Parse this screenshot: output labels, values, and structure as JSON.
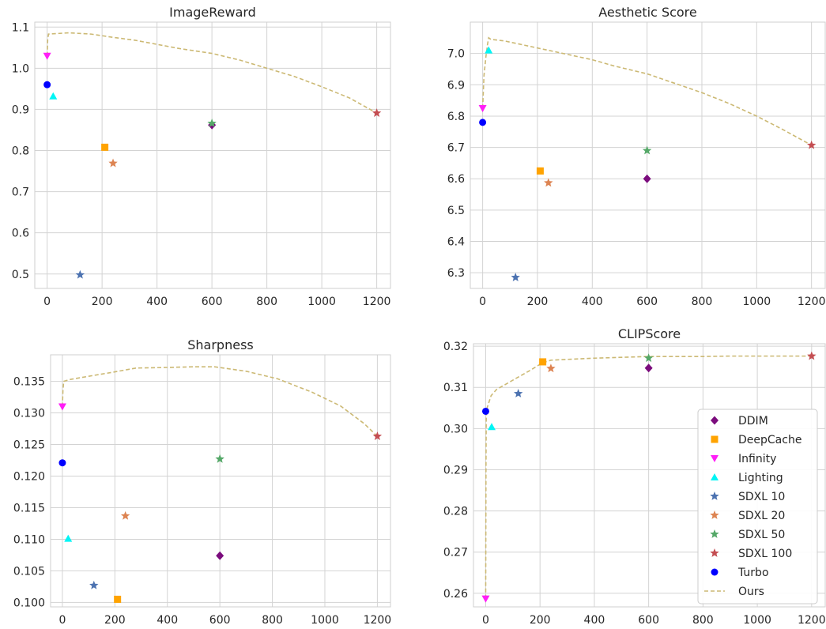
{
  "chart_data": [
    {
      "type": "scatter",
      "title": "ImageReward",
      "xlabel": "",
      "ylabel": "",
      "xlim": [
        -45,
        1250
      ],
      "ylim": [
        0.465,
        1.112
      ],
      "xticks": [
        0,
        200,
        400,
        600,
        800,
        1000,
        1200
      ],
      "yticks": [
        0.5,
        0.6,
        0.7,
        0.8,
        0.9,
        1.0,
        1.1
      ],
      "ytick_labels": [
        "0.5",
        "0.6",
        "0.7",
        "0.8",
        "0.9",
        "1.0",
        "1.1"
      ],
      "grid": true,
      "points": [
        {
          "series": "DDIM",
          "x": 600,
          "y": 0.862
        },
        {
          "series": "DeepCache",
          "x": 210,
          "y": 0.808
        },
        {
          "series": "Infinity",
          "x": 0,
          "y": 1.03
        },
        {
          "series": "Lighting",
          "x": 22,
          "y": 0.932
        },
        {
          "series": "SDXL 10",
          "x": 120,
          "y": 0.498
        },
        {
          "series": "SDXL 20",
          "x": 240,
          "y": 0.769
        },
        {
          "series": "SDXL 50",
          "x": 600,
          "y": 0.866
        },
        {
          "series": "SDXL 100",
          "x": 1200,
          "y": 0.891
        },
        {
          "series": "Turbo",
          "x": 0,
          "y": 0.96
        }
      ],
      "line": {
        "series": "Ours",
        "x": [
          0,
          2,
          5,
          30,
          80,
          160,
          240,
          320,
          400,
          480,
          600,
          700,
          800,
          900,
          1000,
          1100,
          1200
        ],
        "y": [
          1.03,
          1.07,
          1.083,
          1.084,
          1.086,
          1.083,
          1.075,
          1.068,
          1.058,
          1.048,
          1.036,
          1.02,
          1.0,
          0.98,
          0.955,
          0.928,
          0.891
        ]
      }
    },
    {
      "type": "scatter",
      "title": "Aesthetic Score",
      "xlabel": "",
      "ylabel": "",
      "xlim": [
        -45,
        1250
      ],
      "ylim": [
        6.25,
        7.1
      ],
      "xticks": [
        0,
        200,
        400,
        600,
        800,
        1000,
        1200
      ],
      "yticks": [
        6.3,
        6.4,
        6.5,
        6.6,
        6.7,
        6.8,
        6.9,
        7.0
      ],
      "ytick_labels": [
        "6.3",
        "6.4",
        "6.5",
        "6.6",
        "6.7",
        "6.8",
        "6.9",
        "7.0"
      ],
      "grid": true,
      "points": [
        {
          "series": "DDIM",
          "x": 600,
          "y": 6.6
        },
        {
          "series": "DeepCache",
          "x": 210,
          "y": 6.625
        },
        {
          "series": "Infinity",
          "x": 0,
          "y": 6.825
        },
        {
          "series": "Lighting",
          "x": 22,
          "y": 7.01
        },
        {
          "series": "SDXL 10",
          "x": 120,
          "y": 6.285
        },
        {
          "series": "SDXL 20",
          "x": 240,
          "y": 6.587
        },
        {
          "series": "SDXL 50",
          "x": 600,
          "y": 6.69
        },
        {
          "series": "SDXL 100",
          "x": 1200,
          "y": 6.707
        },
        {
          "series": "Turbo",
          "x": 0,
          "y": 6.78
        }
      ],
      "line": {
        "series": "Ours",
        "x": [
          0,
          5,
          12,
          18,
          22,
          30,
          80,
          160,
          240,
          320,
          400,
          480,
          600,
          700,
          800,
          900,
          1000,
          1100,
          1200
        ],
        "y": [
          6.825,
          6.93,
          6.99,
          7.03,
          7.05,
          7.045,
          7.04,
          7.025,
          7.01,
          6.995,
          6.98,
          6.96,
          6.935,
          6.905,
          6.875,
          6.84,
          6.8,
          6.755,
          6.707
        ]
      }
    },
    {
      "type": "scatter",
      "title": "Sharpness",
      "xlabel": "",
      "ylabel": "",
      "xlim": [
        -45,
        1250
      ],
      "ylim": [
        0.0993,
        0.1392
      ],
      "xticks": [
        0,
        200,
        400,
        600,
        800,
        1000,
        1200
      ],
      "yticks": [
        0.1,
        0.105,
        0.11,
        0.115,
        0.12,
        0.125,
        0.13,
        0.135
      ],
      "ytick_labels": [
        "0.100",
        "0.105",
        "0.110",
        "0.115",
        "0.120",
        "0.125",
        "0.130",
        "0.135"
      ],
      "grid": true,
      "points": [
        {
          "series": "DDIM",
          "x": 600,
          "y": 0.1074
        },
        {
          "series": "DeepCache",
          "x": 210,
          "y": 0.1005
        },
        {
          "series": "Infinity",
          "x": 0,
          "y": 0.131
        },
        {
          "series": "Lighting",
          "x": 22,
          "y": 0.1101
        },
        {
          "series": "SDXL 10",
          "x": 120,
          "y": 0.1027
        },
        {
          "series": "SDXL 20",
          "x": 240,
          "y": 0.1137
        },
        {
          "series": "SDXL 50",
          "x": 600,
          "y": 0.1227
        },
        {
          "series": "SDXL 100",
          "x": 1200,
          "y": 0.1263
        },
        {
          "series": "Turbo",
          "x": 0,
          "y": 0.1221
        }
      ],
      "line": {
        "series": "Ours",
        "x": [
          0,
          2,
          5,
          30,
          100,
          200,
          280,
          400,
          500,
          580,
          700,
          820,
          950,
          1060,
          1150,
          1200
        ],
        "y": [
          0.131,
          0.1335,
          0.135,
          0.1353,
          0.1358,
          0.1365,
          0.1371,
          0.1372,
          0.1373,
          0.1373,
          0.1366,
          0.1354,
          0.1333,
          0.1311,
          0.1283,
          0.1263
        ]
      }
    },
    {
      "type": "scatter",
      "title": "CLIPScore",
      "xlabel": "",
      "ylabel": "",
      "xlim": [
        -45,
        1250
      ],
      "ylim": [
        0.2567,
        0.3206
      ],
      "xticks": [
        0,
        200,
        400,
        600,
        800,
        1000,
        1200
      ],
      "yticks": [
        0.26,
        0.27,
        0.28,
        0.29,
        0.3,
        0.31,
        0.32
      ],
      "ytick_labels": [
        "0.26",
        "0.27",
        "0.28",
        "0.29",
        "0.30",
        "0.31",
        "0.32"
      ],
      "grid": true,
      "points": [
        {
          "series": "DDIM",
          "x": 600,
          "y": 0.3147
        },
        {
          "series": "DeepCache",
          "x": 210,
          "y": 0.3162
        },
        {
          "series": "Infinity",
          "x": 0,
          "y": 0.2587
        },
        {
          "series": "Lighting",
          "x": 22,
          "y": 0.3004
        },
        {
          "series": "SDXL 10",
          "x": 120,
          "y": 0.3085
        },
        {
          "series": "SDXL 20",
          "x": 240,
          "y": 0.3146
        },
        {
          "series": "SDXL 50",
          "x": 600,
          "y": 0.3171
        },
        {
          "series": "SDXL 100",
          "x": 1200,
          "y": 0.3176
        },
        {
          "series": "Turbo",
          "x": 0,
          "y": 0.3042
        }
      ],
      "line": {
        "series": "Ours",
        "x": [
          0,
          1,
          2,
          5,
          10,
          20,
          40,
          80,
          120,
          160,
          210,
          240,
          300,
          400,
          500,
          600,
          700,
          800,
          900,
          1000,
          1100,
          1200
        ],
        "y": [
          0.2587,
          0.29,
          0.303,
          0.305,
          0.306,
          0.308,
          0.3095,
          0.311,
          0.3125,
          0.314,
          0.316,
          0.3166,
          0.3168,
          0.3171,
          0.3173,
          0.3175,
          0.3175,
          0.3175,
          0.3176,
          0.3176,
          0.3176,
          0.3176
        ]
      }
    }
  ],
  "legend": {
    "placement": "lower-right of CLIPScore panel",
    "entries": [
      {
        "label": "DDIM",
        "marker": "diamond",
        "color": "#7b0c7d"
      },
      {
        "label": "DeepCache",
        "marker": "square",
        "color": "#ffa300"
      },
      {
        "label": "Infinity",
        "marker": "triangle-down",
        "color": "#ff1ef7"
      },
      {
        "label": "Lighting",
        "marker": "triangle-up",
        "color": "#00f5f5"
      },
      {
        "label": "SDXL 10",
        "marker": "star",
        "color": "#4c72b0"
      },
      {
        "label": "SDXL 20",
        "marker": "star",
        "color": "#dd8452"
      },
      {
        "label": "SDXL 50",
        "marker": "star",
        "color": "#55a868"
      },
      {
        "label": "SDXL 100",
        "marker": "star",
        "color": "#c44e52"
      },
      {
        "label": "Turbo",
        "marker": "circle",
        "color": "#0000ff"
      },
      {
        "label": "Ours",
        "marker": "dashed-line",
        "color": "#ccb974"
      }
    ]
  }
}
